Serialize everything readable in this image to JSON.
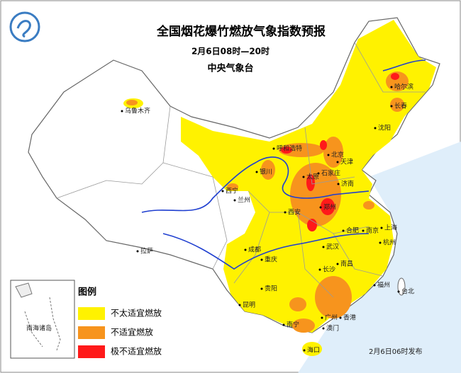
{
  "header": {
    "title": "全国烟花爆竹燃放气象指数预报",
    "time": "2月6日08时—20时",
    "issuer": "中央气象台"
  },
  "legend": {
    "title": "图例",
    "items": [
      {
        "label": "不太适宜燃放",
        "color": "#fff200"
      },
      {
        "label": "不适宜燃放",
        "color": "#f7941d"
      },
      {
        "label": "极不适宜燃放",
        "color": "#ff1a1a"
      }
    ]
  },
  "cities": [
    "乌鲁木齐",
    "哈尔滨",
    "长春",
    "沈阳",
    "呼和浩特",
    "北京",
    "天津",
    "银川",
    "太原",
    "石家庄",
    "济南",
    "兰州",
    "西宁",
    "西安",
    "郑州",
    "合肥",
    "南京",
    "上海",
    "成都",
    "武汉",
    "杭州",
    "重庆",
    "长沙",
    "南昌",
    "贵阳",
    "福州",
    "台北",
    "昆明",
    "南宁",
    "广州",
    "香港",
    "澳门",
    "海口",
    "拉萨"
  ],
  "inset": "南海诸岛",
  "footer": "2月6日06时发布"
}
